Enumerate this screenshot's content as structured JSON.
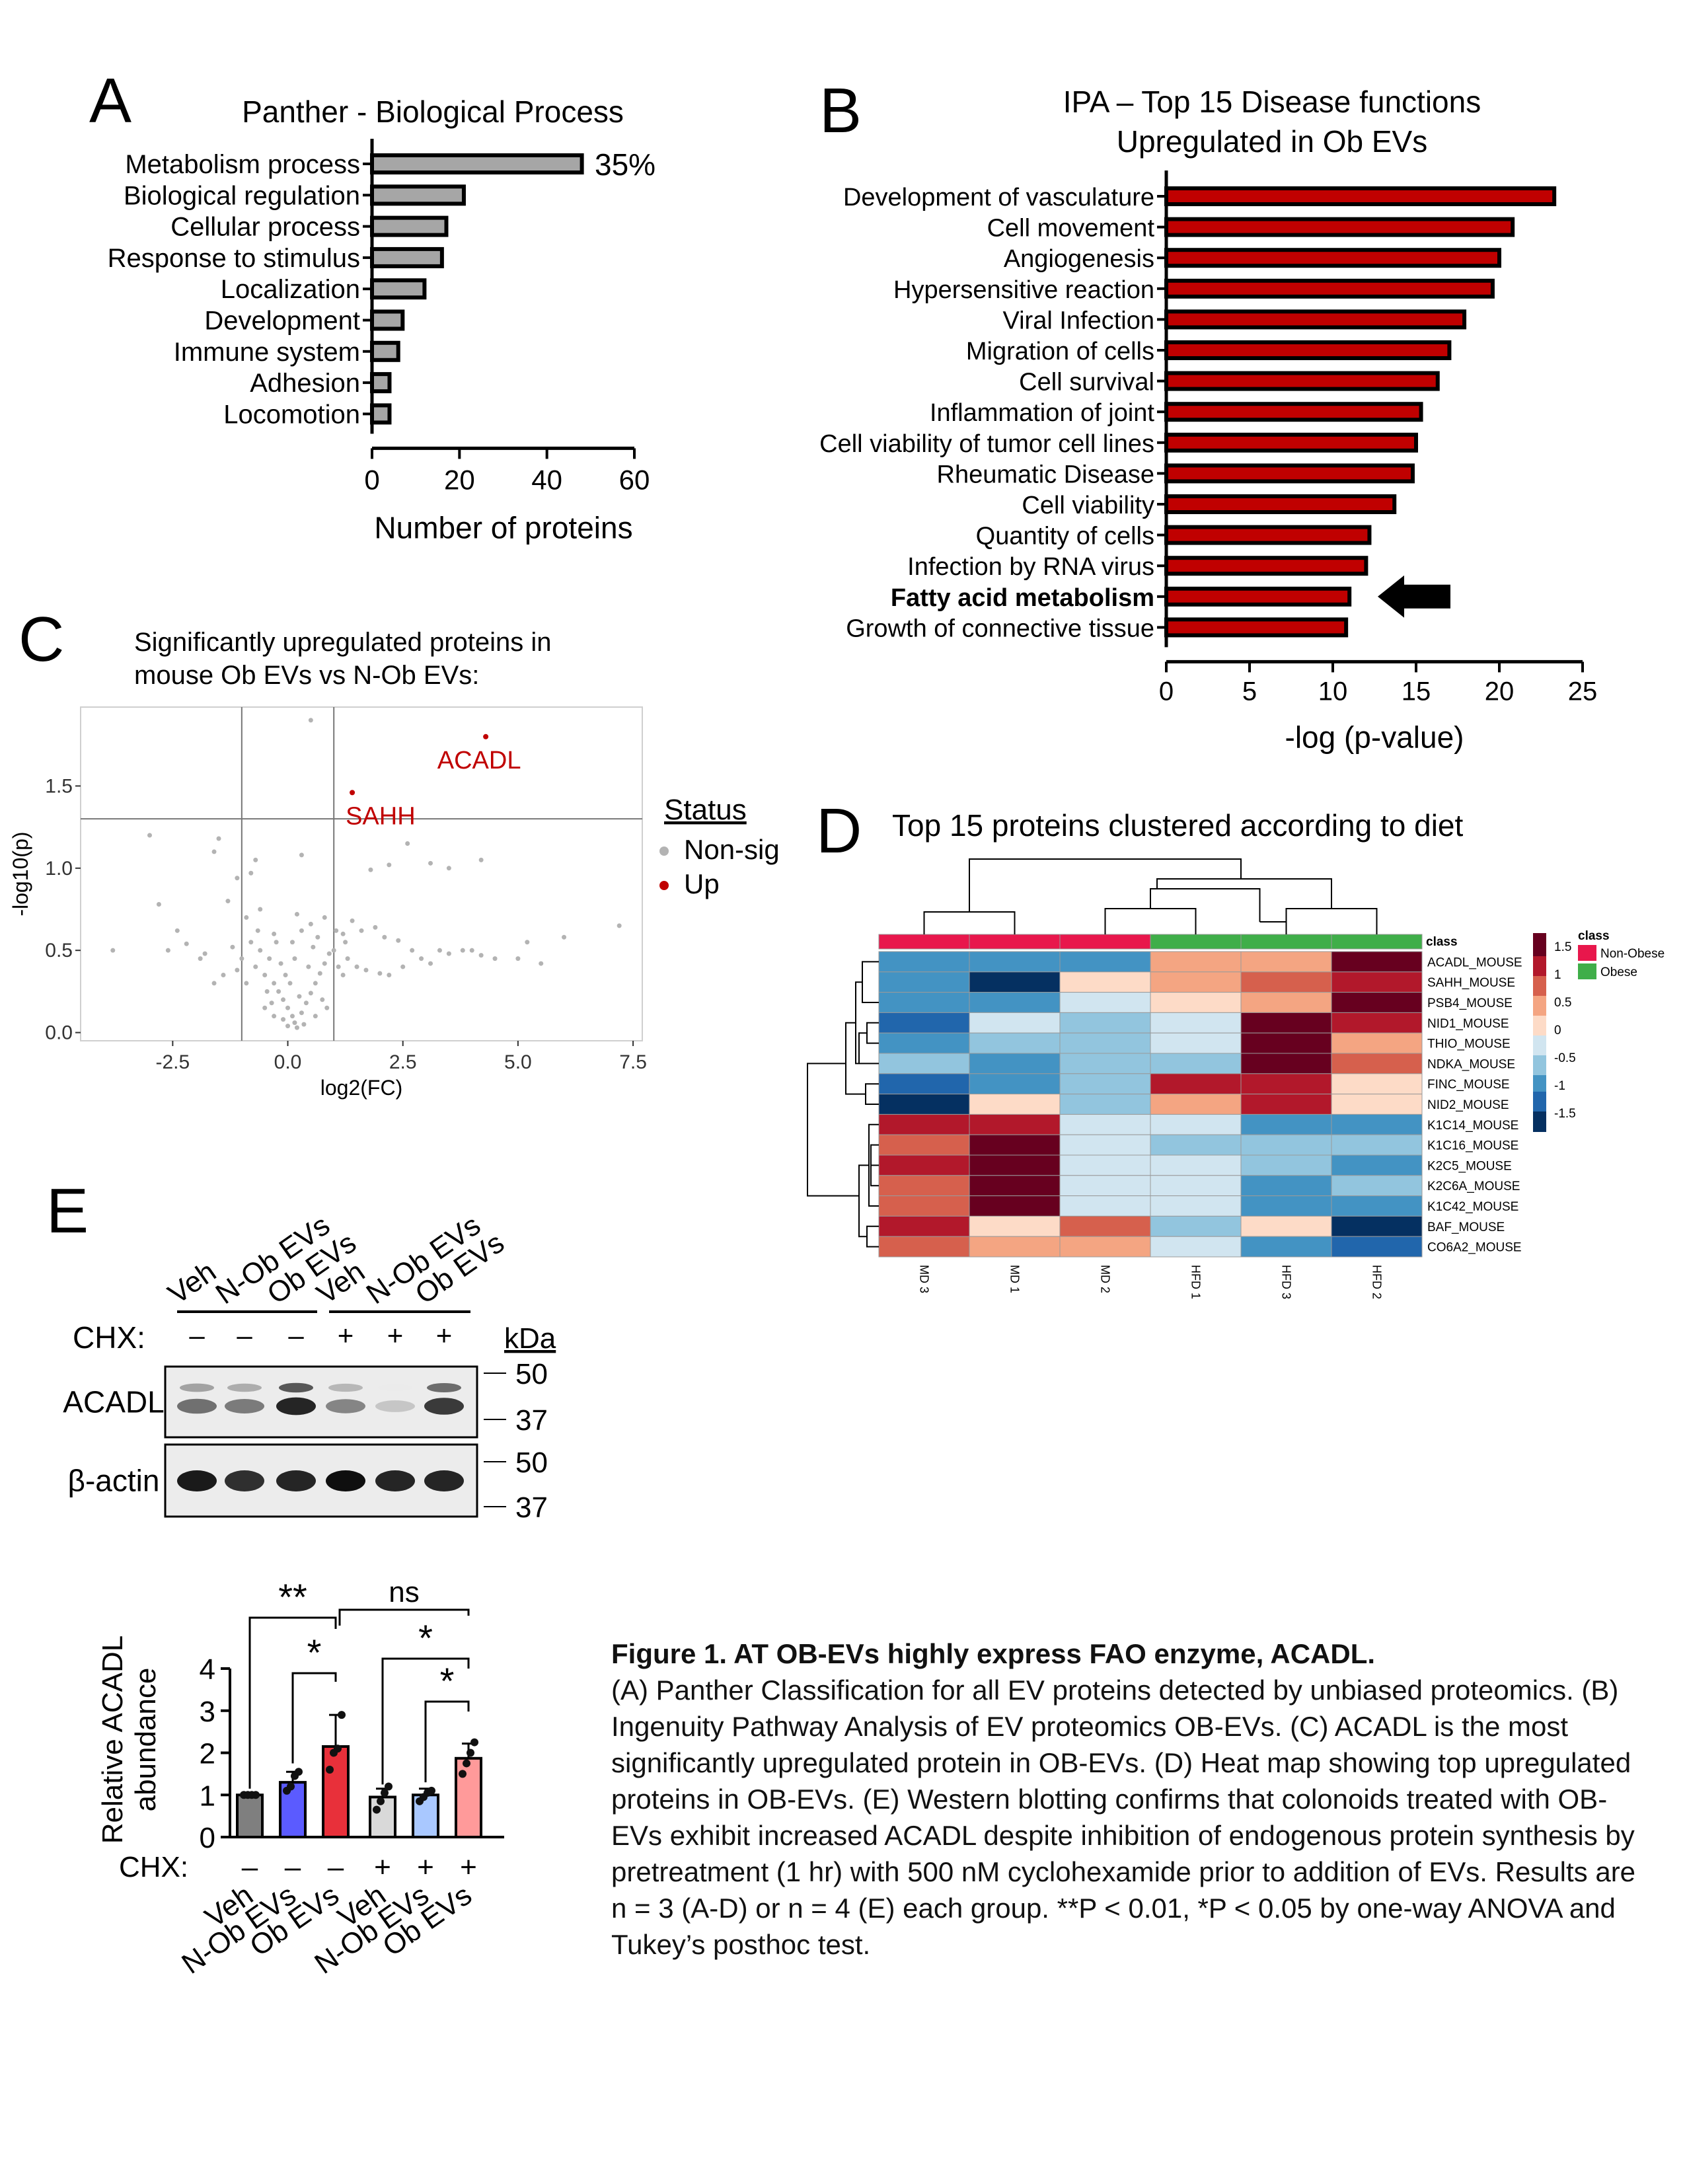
{
  "panelA": {
    "letter": "A",
    "chart_data": {
      "type": "bar",
      "orientation": "horizontal",
      "title": "Panther - Biological Process",
      "categories": [
        "Metabolism process",
        "Biological regulation",
        "Cellular process",
        "Response to stimulus",
        "Localization",
        "Development",
        "Immune system",
        "Adhesion",
        "Locomotion"
      ],
      "values": [
        48,
        21,
        17,
        16,
        12,
        7,
        6,
        4,
        4
      ],
      "xlabel": "Number of proteins",
      "xlim": [
        0,
        60
      ],
      "xticks": [
        "0",
        "20",
        "40",
        "60"
      ],
      "annotation": "35%",
      "bar_color": "#a6a6a6"
    }
  },
  "panelB": {
    "letter": "B",
    "chart_data": {
      "type": "bar",
      "orientation": "horizontal",
      "title": [
        "IPA – Top 15 Disease functions",
        "Upregulated in Ob EVs"
      ],
      "categories": [
        "Development of vasculature",
        "Cell movement",
        "Angiogenesis",
        "Hypersensitive reaction",
        "Viral Infection",
        "Migration of cells",
        "Cell survival",
        "Inflammation of joint",
        "Cell viability of tumor cell lines",
        "Rheumatic Disease",
        "Cell viability",
        "Quantity of cells",
        "Infection by RNA virus",
        "Fatty acid metabolism",
        "Growth of connective tissue"
      ],
      "values": [
        23.3,
        20.8,
        20.0,
        19.6,
        17.9,
        17.0,
        16.3,
        15.3,
        15.0,
        14.8,
        13.7,
        12.2,
        12.0,
        11.0,
        10.8
      ],
      "highlight": "Fatty acid metabolism",
      "xlabel": "-log (p-value)",
      "xlim": [
        0,
        25
      ],
      "xticks": [
        "0",
        "5",
        "10",
        "15",
        "20",
        "25"
      ],
      "bar_color": "#c00000"
    }
  },
  "panelC": {
    "letter": "C",
    "title": [
      "Significantly upregulated proteins in",
      "mouse Ob EVs vs N-Ob EVs:"
    ],
    "chart_data": {
      "type": "scatter",
      "xlabel": "log2(FC)",
      "ylabel": "-log10(p)",
      "xlim": [
        -4.5,
        7.7
      ],
      "ylim": [
        -0.05,
        1.98
      ],
      "xticks": [
        "-2.5",
        "0.0",
        "2.5",
        "5.0",
        "7.5"
      ],
      "yticks": [
        "0.0",
        "0.5",
        "1.0",
        "1.5"
      ],
      "thresholds": {
        "x": [
          -1,
          1
        ],
        "y": 1.3
      },
      "legend_title": "Status",
      "legend": [
        {
          "label": "Non-sig",
          "color": "#b3b3b3"
        },
        {
          "label": "Up",
          "color": "#c00000"
        }
      ],
      "up_points": [
        {
          "x": 4.3,
          "y": 1.8,
          "label": "ACADL"
        },
        {
          "x": 1.4,
          "y": 1.46,
          "label": "SAHH"
        }
      ],
      "nonsig_points": [
        [
          0.5,
          1.9
        ],
        [
          -3.0,
          1.2
        ],
        [
          -1.5,
          1.18
        ],
        [
          -1.6,
          1.1
        ],
        [
          -0.7,
          1.05
        ],
        [
          -0.8,
          0.97
        ],
        [
          -1.1,
          0.94
        ],
        [
          2.6,
          1.15
        ],
        [
          3.1,
          1.03
        ],
        [
          3.5,
          1.0
        ],
        [
          4.2,
          1.05
        ],
        [
          2.2,
          1.02
        ],
        [
          1.8,
          0.99
        ],
        [
          0.3,
          1.08
        ],
        [
          -3.8,
          0.5
        ],
        [
          -2.8,
          0.78
        ],
        [
          -2.4,
          0.62
        ],
        [
          -2.2,
          0.54
        ],
        [
          -1.9,
          0.45
        ],
        [
          -1.4,
          0.35
        ],
        [
          -1.3,
          0.8
        ],
        [
          -1.6,
          0.3
        ],
        [
          -1.8,
          0.48
        ],
        [
          -2.6,
          0.5
        ],
        [
          -1.2,
          0.52
        ],
        [
          -0.9,
          0.7
        ],
        [
          -0.6,
          0.75
        ],
        [
          -0.3,
          0.6
        ],
        [
          0.2,
          0.72
        ],
        [
          0.5,
          0.66
        ],
        [
          0.8,
          0.7
        ],
        [
          1.2,
          0.6
        ],
        [
          1.4,
          0.68
        ],
        [
          1.6,
          0.62
        ],
        [
          1.9,
          0.64
        ],
        [
          2.1,
          0.58
        ],
        [
          2.4,
          0.56
        ],
        [
          2.7,
          0.5
        ],
        [
          2.9,
          0.45
        ],
        [
          3.1,
          0.42
        ],
        [
          3.3,
          0.5
        ],
        [
          3.5,
          0.48
        ],
        [
          3.8,
          0.5
        ],
        [
          4.0,
          0.5
        ],
        [
          4.2,
          0.47
        ],
        [
          4.5,
          0.45
        ],
        [
          5.0,
          0.45
        ],
        [
          5.5,
          0.42
        ],
        [
          7.2,
          0.65
        ],
        [
          6.0,
          0.58
        ],
        [
          5.2,
          0.55
        ],
        [
          -0.7,
          0.4
        ],
        [
          -0.5,
          0.35
        ],
        [
          -0.3,
          0.3
        ],
        [
          -0.2,
          0.25
        ],
        [
          -0.1,
          0.2
        ],
        [
          0.0,
          0.15
        ],
        [
          0.1,
          0.1
        ],
        [
          0.15,
          0.06
        ],
        [
          0.2,
          0.03
        ],
        [
          0.0,
          0.04
        ],
        [
          -0.1,
          0.08
        ],
        [
          0.3,
          0.12
        ],
        [
          0.4,
          0.18
        ],
        [
          0.5,
          0.24
        ],
        [
          0.6,
          0.3
        ],
        [
          0.7,
          0.36
        ],
        [
          0.8,
          0.42
        ],
        [
          0.9,
          0.48
        ],
        [
          1.0,
          0.5
        ],
        [
          1.1,
          0.4
        ],
        [
          1.2,
          0.35
        ],
        [
          1.3,
          0.45
        ],
        [
          1.5,
          0.4
        ],
        [
          1.7,
          0.38
        ],
        [
          2.0,
          0.36
        ],
        [
          2.2,
          0.35
        ],
        [
          2.5,
          0.4
        ],
        [
          -0.4,
          0.45
        ],
        [
          -0.6,
          0.5
        ],
        [
          -0.8,
          0.55
        ],
        [
          -1.0,
          0.45
        ],
        [
          -1.1,
          0.38
        ],
        [
          -0.9,
          0.3
        ],
        [
          -0.5,
          0.15
        ],
        [
          -0.3,
          0.1
        ],
        [
          0.35,
          0.05
        ],
        [
          0.25,
          0.22
        ],
        [
          0.45,
          0.4
        ],
        [
          0.55,
          0.52
        ],
        [
          0.05,
          0.3
        ],
        [
          -0.15,
          0.42
        ],
        [
          -0.25,
          0.55
        ],
        [
          0.1,
          0.55
        ],
        [
          0.3,
          0.62
        ],
        [
          0.65,
          0.58
        ],
        [
          0.75,
          0.2
        ],
        [
          -0.45,
          0.25
        ],
        [
          -0.65,
          0.62
        ],
        [
          1.05,
          0.62
        ],
        [
          1.25,
          0.55
        ],
        [
          0.85,
          0.15
        ],
        [
          -0.05,
          0.35
        ],
        [
          0.15,
          0.45
        ],
        [
          -0.35,
          0.18
        ],
        [
          0.6,
          0.1
        ]
      ]
    }
  },
  "panelD": {
    "letter": "D",
    "title": "Top 15 proteins clustered according to diet",
    "class_label": "class",
    "legend_title": "class",
    "legend": [
      {
        "label": "Non-Obese",
        "color": "#e8174c"
      },
      {
        "label": "Obese",
        "color": "#3fae49"
      }
    ],
    "scale_ticks": [
      "1.5",
      "1",
      "0.5",
      "0",
      "-0.5",
      "-1",
      "-1.5"
    ],
    "columns": [
      "MD 3",
      "MD 1",
      "MD 2",
      "HFD 1",
      "HFD 3",
      "HFD 2"
    ],
    "column_classes": [
      "Non-Obese",
      "Non-Obese",
      "Non-Obese",
      "Obese",
      "Obese",
      "Obese"
    ],
    "rows": [
      "ACADL_MOUSE",
      "SAHH_MOUSE",
      "PSB4_MOUSE",
      "NID1_MOUSE",
      "THIO_MOUSE",
      "NDKA_MOUSE",
      "FINC_MOUSE",
      "NID2_MOUSE",
      "K1C14_MOUSE",
      "K1C16_MOUSE",
      "K2C5_MOUSE",
      "K2C6A_MOUSE",
      "K1C42_MOUSE",
      "BAF_MOUSE",
      "CO6A2_MOUSE"
    ],
    "chart_data": {
      "type": "heatmap",
      "values": [
        [
          -0.9,
          -0.9,
          -0.9,
          0.4,
          0.5,
          1.6
        ],
        [
          -1.1,
          -1.6,
          0.1,
          0.5,
          0.8,
          1.3
        ],
        [
          -0.9,
          -1.2,
          -0.2,
          0.3,
          0.6,
          1.6
        ],
        [
          -1.3,
          -0.3,
          -0.5,
          -0.3,
          1.7,
          1.2
        ],
        [
          -1.0,
          -0.8,
          -0.5,
          -0.3,
          1.8,
          0.6
        ],
        [
          -0.5,
          -0.9,
          -0.8,
          -0.8,
          1.6,
          1.1
        ],
        [
          -1.4,
          -1.0,
          -0.5,
          1.2,
          1.5,
          0.1
        ],
        [
          -1.7,
          0.0,
          -0.6,
          0.5,
          1.5,
          0.2
        ],
        [
          1.3,
          1.5,
          -0.4,
          -0.1,
          -1.0,
          -1.0
        ],
        [
          0.9,
          1.7,
          -0.3,
          -0.7,
          -0.6,
          -0.8
        ],
        [
          1.2,
          1.7,
          -0.3,
          -0.4,
          -0.8,
          -0.9
        ],
        [
          1.1,
          1.7,
          -0.3,
          -0.4,
          -0.9,
          -0.7
        ],
        [
          1.0,
          1.7,
          -0.2,
          -0.4,
          -0.9,
          -0.9
        ],
        [
          1.2,
          0.2,
          0.9,
          -0.6,
          0.3,
          -1.9
        ],
        [
          1.0,
          0.6,
          0.6,
          -0.2,
          -1.2,
          -1.4
        ]
      ],
      "colorscale": [
        "#053061",
        "#2166ac",
        "#4393c3",
        "#92c5de",
        "#d1e5f0",
        "#fddbc7",
        "#f4a582",
        "#d6604d",
        "#b2182b",
        "#67001f"
      ]
    }
  },
  "panelE": {
    "letter": "E",
    "blot": {
      "lane_labels": [
        "Veh",
        "N-Ob EVs",
        "Ob EVs",
        "Veh",
        "N-Ob EVs",
        "Ob EVs"
      ],
      "chx_label": "CHX:",
      "chx": [
        "–",
        "–",
        "–",
        "+",
        "+",
        "+"
      ],
      "kda_label": "kDa",
      "rows": [
        {
          "label": "ACADL",
          "markers": [
            "50",
            "37"
          ],
          "band_intensity": [
            0.55,
            0.5,
            0.9,
            0.45,
            0.15,
            0.8
          ]
        },
        {
          "label": "β-actin",
          "markers": [
            "50",
            "37"
          ],
          "band_intensity": [
            0.95,
            0.85,
            0.9,
            1.0,
            0.9,
            0.9
          ]
        }
      ]
    },
    "chart_data": {
      "type": "bar",
      "ylabel": [
        "Relative ACADL",
        "abundance"
      ],
      "categories": [
        "Veh",
        "N-Ob EVs",
        "Ob EVs",
        "Veh",
        "N-Ob EVs",
        "Ob EVs"
      ],
      "values": [
        1.0,
        1.3,
        2.15,
        0.95,
        1.0,
        1.87
      ],
      "errors": [
        0.05,
        0.25,
        0.75,
        0.2,
        0.15,
        0.35
      ],
      "ylim": [
        0,
        4
      ],
      "yticks": [
        "0",
        "1",
        "2",
        "3",
        "4"
      ],
      "colors": [
        "#7f7f7f",
        "#5b5bff",
        "#e8303a",
        "#d9d9d9",
        "#a9c8ff",
        "#ff9a9a"
      ],
      "points": [
        [
          1.0,
          1.0,
          1.0,
          1.0
        ],
        [
          1.1,
          1.2,
          1.45,
          1.55
        ],
        [
          1.6,
          2.0,
          2.1,
          2.9
        ],
        [
          0.65,
          0.85,
          1.05,
          1.2
        ],
        [
          0.85,
          0.95,
          1.05,
          1.1
        ],
        [
          1.5,
          1.75,
          2.0,
          2.25
        ]
      ],
      "chx_label": "CHX:",
      "chx": [
        "–",
        "–",
        "–",
        "+",
        "+",
        "+"
      ],
      "sig_labels": [
        "**",
        "*",
        "ns",
        "*",
        "*"
      ]
    }
  },
  "caption": {
    "title": "Figure 1. AT OB-EVs highly express FAO enzyme, ACADL.",
    "body": "(A) Panther Classification for all EV proteins detected by unbiased proteomics. (B) Ingenuity Pathway Analysis of EV proteomics OB-EVs. (C) ACADL is the most significantly upregulated protein in OB-EVs. (D) Heat map showing top upregulated proteins in OB-EVs. (E) Western blotting confirms that colonoids treated with OB-EVs exhibit increased ACADL despite inhibition of endogenous protein synthesis by pretreatment (1 hr) with 500 nM cyclohexamide prior to addition of EVs. Results are n = 3 (A-D) or n = 4 (E) each group. **P < 0.01, *P < 0.05 by one-way ANOVA and Tukey’s posthoc test."
  }
}
